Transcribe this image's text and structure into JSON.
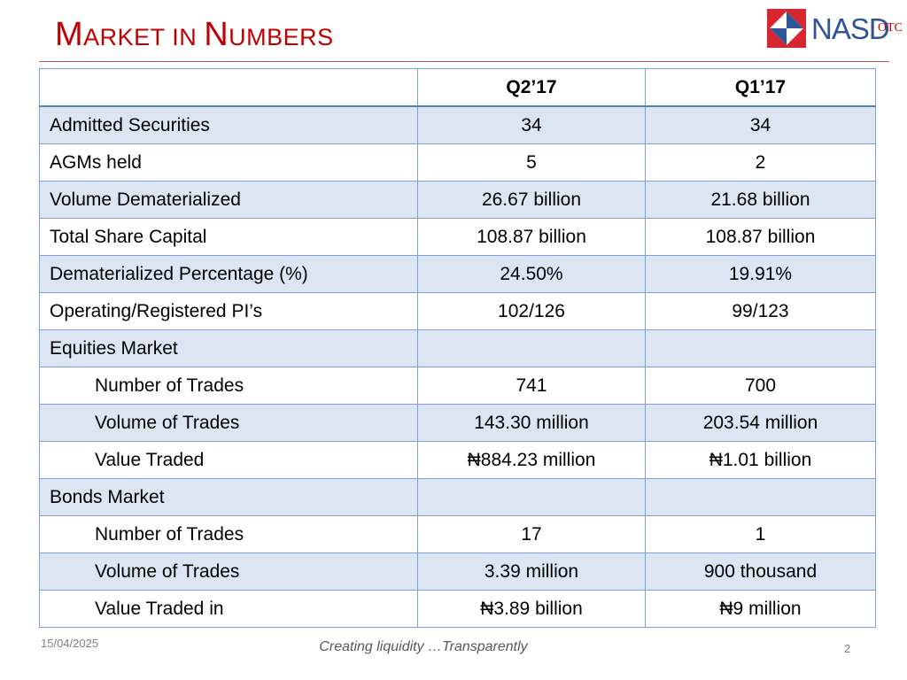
{
  "slide": {
    "title_m": "M",
    "title_arket": "ARKET IN ",
    "title_n": "N",
    "title_umbers": "UMBERS",
    "logo": {
      "text": "NASD",
      "suffix": "OTC"
    }
  },
  "table": {
    "header": {
      "label": "",
      "col1": "Q2’17",
      "col2": "Q1’17"
    },
    "rows": [
      {
        "label": "Admitted Securities",
        "q2": "34",
        "q1": "34"
      },
      {
        "label": "AGMs held",
        "q2": "5",
        "q1": "2"
      },
      {
        "label": "Volume Dematerialized",
        "q2": "26.67 billion",
        "q1": "21.68 billion"
      },
      {
        "label": "Total Share Capital",
        "q2": "108.87 billion",
        "q1": "108.87 billion"
      },
      {
        "label": "Dematerialized Percentage (%)",
        "q2": "24.50%",
        "q1": "19.91%"
      },
      {
        "label": "Operating/Registered PI’s",
        "q2": "102/126",
        "q1": "99/123"
      },
      {
        "label": "Equities Market",
        "q2": "",
        "q1": ""
      },
      {
        "label": "Number of Trades",
        "q2": "741",
        "q1": "700"
      },
      {
        "label": "Volume of Trades",
        "q2": "143.30 million",
        "q1": "203.54 million"
      },
      {
        "label": "Value Traded",
        "q2": "₦884.23 million",
        "q1": "₦1.01 billion"
      },
      {
        "label": "Bonds Market",
        "q2": "",
        "q1": ""
      },
      {
        "label": "Number of Trades",
        "q2": "17",
        "q1": "1"
      },
      {
        "label": "Volume of Trades",
        "q2": "3.39 million",
        "q1": "900 thousand"
      },
      {
        "label": "Value Traded in",
        "q2": "₦3.89 billion",
        "q1": "₦9 million"
      }
    ]
  },
  "footer": {
    "date": "15/04/2025",
    "tagline": "Creating liquidity …Transparently",
    "page": "2"
  },
  "colors": {
    "title": "#c00000",
    "row_shade": "#dce6f2",
    "border": "#7ea0d6",
    "logo_blue": "#2f5597"
  }
}
